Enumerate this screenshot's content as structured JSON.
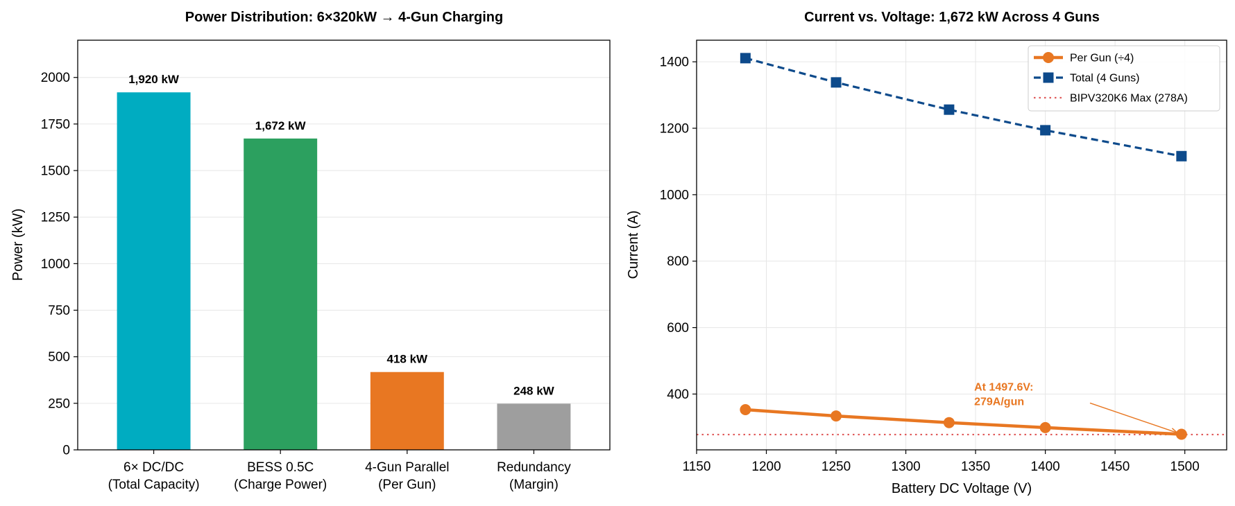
{
  "colors": {
    "teal": "#00acc1",
    "green": "#2ca05f",
    "orange": "#e87722",
    "gray": "#9e9e9e",
    "navy": "#0d4a8b",
    "red_dotted": "#e05a5a",
    "grid": "#e6e6e6"
  },
  "chart_data": [
    {
      "type": "bar",
      "title": "Power Distribution: 6×320kW → 4-Gun Charging",
      "xlabel": "",
      "ylabel": "Power (kW)",
      "ylim": [
        0,
        2200
      ],
      "yticks": [
        "0",
        "250",
        "500",
        "750",
        "1000",
        "1250",
        "1500",
        "1750",
        "2000"
      ],
      "grid": "y",
      "categories": [
        [
          "6× DC/DC",
          "(Total Capacity)"
        ],
        [
          "BESS 0.5C",
          "(Charge Power)"
        ],
        [
          "4-Gun Parallel",
          "(Per Gun)"
        ],
        [
          "Redundancy",
          "(Margin)"
        ]
      ],
      "values": [
        1920,
        1672,
        418,
        248
      ],
      "data_labels": [
        "1,920 kW",
        "1,672 kW",
        "418 kW",
        "248 kW"
      ],
      "bar_colors": [
        "#00acc1",
        "#2ca05f",
        "#e87722",
        "#9e9e9e"
      ]
    },
    {
      "type": "line",
      "title": "Current vs. Voltage: 1,672 kW Across 4 Guns",
      "xlabel": "Battery DC Voltage (V)",
      "ylabel": "Current (A)",
      "xlim": [
        1150,
        1530
      ],
      "ylim": [
        232,
        1465
      ],
      "xticks": [
        "1150",
        "1200",
        "1250",
        "1300",
        "1350",
        "1400",
        "1450",
        "1500"
      ],
      "yticks": [
        "400",
        "600",
        "800",
        "1000",
        "1200",
        "1400"
      ],
      "grid": "both",
      "legend": "top-right",
      "x": [
        1185,
        1250,
        1331,
        1400,
        1497.6
      ],
      "series": [
        {
          "name": "Per Gun (÷4)",
          "values": [
            353,
            334,
            314,
            299,
            279
          ],
          "color": "#e87722",
          "marker": "circle",
          "style": "solid"
        },
        {
          "name": "Total (4 Guns)",
          "values": [
            1411,
            1338,
            1256,
            1194,
            1116
          ],
          "color": "#0d4a8b",
          "marker": "square",
          "style": "dashed"
        }
      ],
      "hline": {
        "name": "BIPV320K6 Max (278A)",
        "value": 278,
        "color": "#e05a5a",
        "style": "dotted"
      },
      "annotation": {
        "lines": [
          "At 1497.6V:",
          "279A/gun"
        ],
        "x": 1497.6,
        "y": 279,
        "color": "#e87722"
      }
    }
  ]
}
